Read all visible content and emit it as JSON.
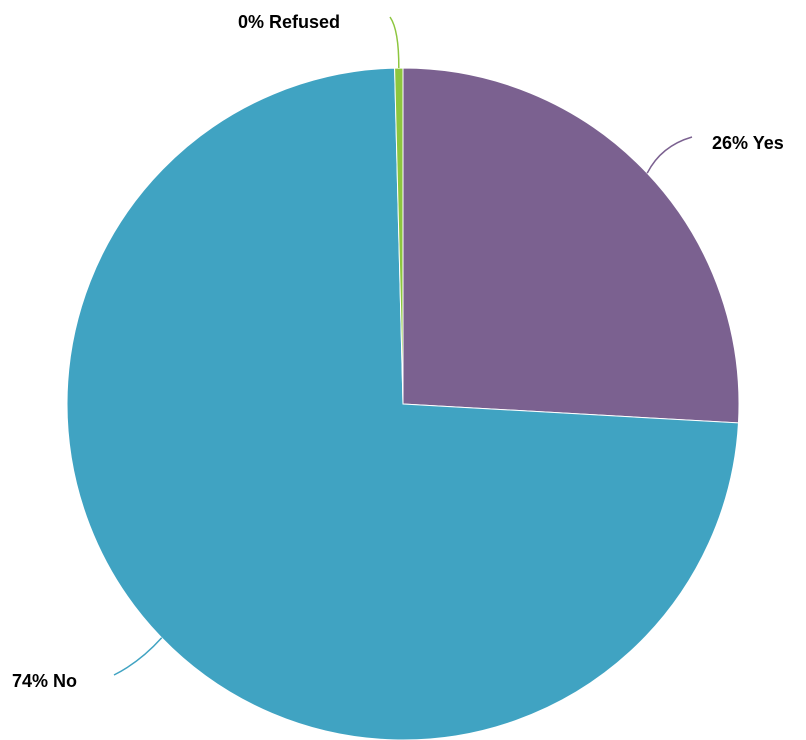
{
  "chart_data": {
    "type": "pie",
    "categories": [
      "Yes",
      "No",
      "Refused"
    ],
    "values": [
      26,
      74,
      0.4
    ],
    "labels": [
      "26% Yes",
      "74% No",
      "0% Refused"
    ],
    "colors": [
      "#7B6190",
      "#40A3C2",
      "#8DC63F"
    ],
    "legend": "none"
  }
}
